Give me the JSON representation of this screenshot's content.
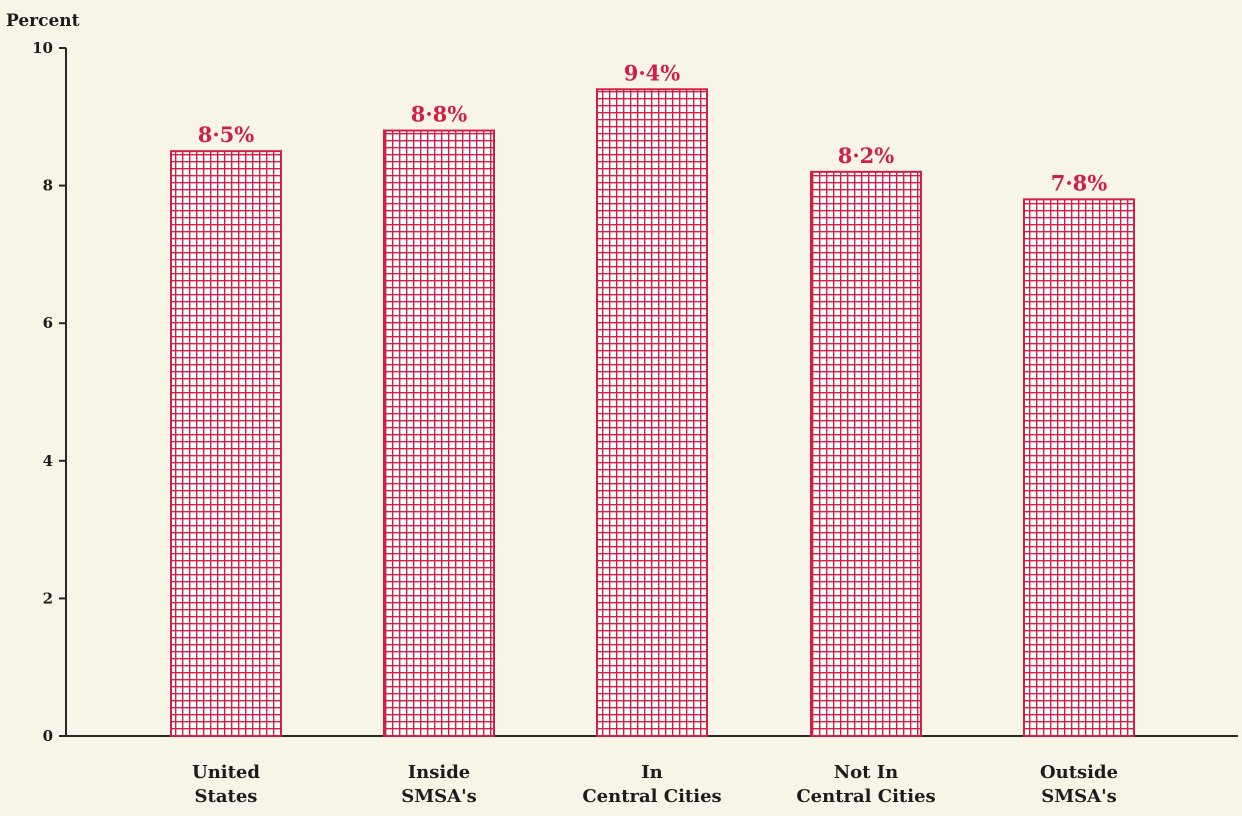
{
  "chart_data": {
    "type": "bar",
    "ylabel": "Percent",
    "ylim": [
      0,
      10
    ],
    "yticks": [
      0,
      2,
      4,
      6,
      8,
      10
    ],
    "categories": [
      [
        "United",
        "States"
      ],
      [
        "Inside",
        "SMSA's"
      ],
      [
        "In",
        "Central Cities"
      ],
      [
        "Not In",
        "Central Cities"
      ],
      [
        "Outside",
        "SMSA's"
      ]
    ],
    "values": [
      8.5,
      8.8,
      9.4,
      8.2,
      7.8
    ],
    "data_labels": [
      "8·5%",
      "8·8%",
      "9·4%",
      "8·2%",
      "7·8%"
    ],
    "grid": false,
    "bar_color": "#d31e47",
    "bar_fill": "crosshatch"
  }
}
